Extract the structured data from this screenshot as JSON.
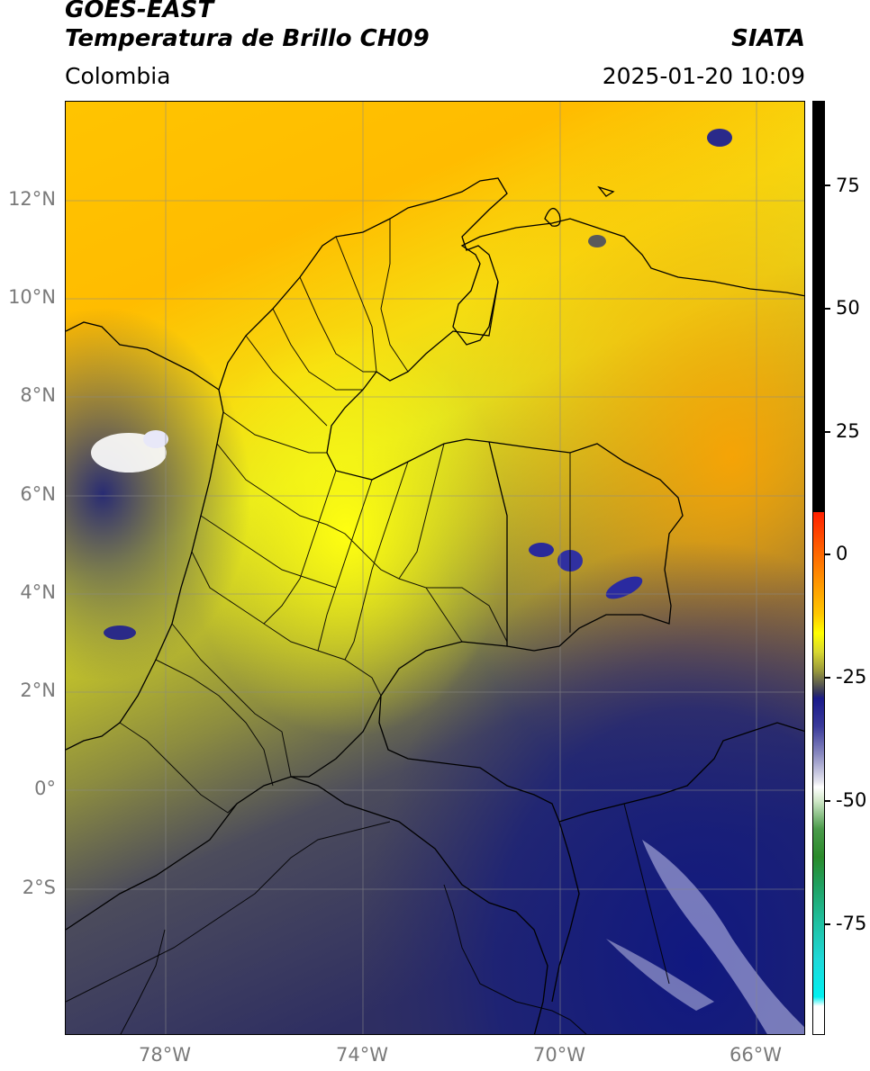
{
  "header": {
    "satellite": "GOES-EAST",
    "product": "Temperatura de Brillo CH09",
    "region": "Colombia",
    "agency": "SIATA",
    "datetime": "2025-01-20 10:09"
  },
  "map": {
    "lat_ticks": [
      "12°N",
      "10°N",
      "8°N",
      "6°N",
      "4°N",
      "2°N",
      "0°",
      "2°S"
    ],
    "lon_ticks": [
      "78°W",
      "74°W",
      "70°W",
      "66°W"
    ],
    "lon_range": [
      -80,
      -65
    ],
    "lat_range": [
      -5,
      14
    ]
  },
  "colorbar": {
    "ticks": [
      "75",
      "50",
      "25",
      "0",
      "-25",
      "-50",
      "-75"
    ],
    "colors": [
      "#ffffff",
      "#1fd8d8",
      "#2a8a2a",
      "#e8f0e0",
      "#1a1a8a",
      "#b8b82e",
      "#ffff00",
      "#ffb000",
      "#ff2000",
      "#000000"
    ]
  }
}
